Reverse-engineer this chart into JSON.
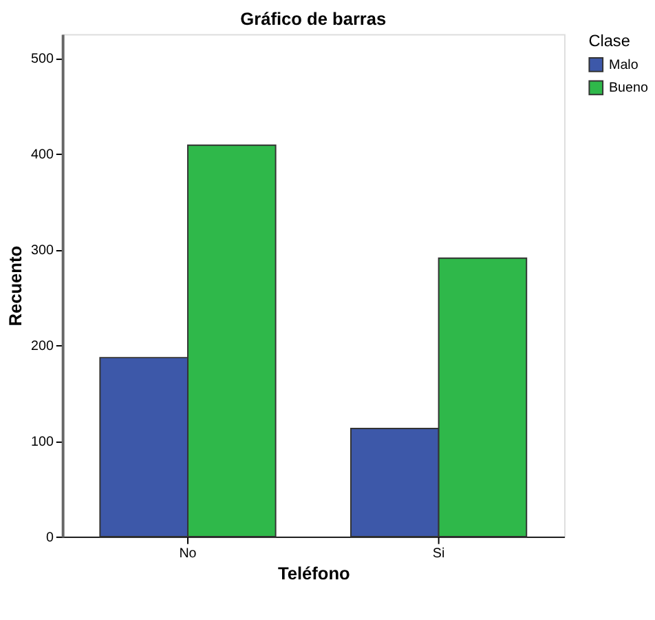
{
  "chart_data": {
    "type": "bar",
    "title": "Gráfico de barras",
    "xlabel": "Teléfono",
    "ylabel": "Recuento",
    "legend_title": "Clase",
    "categories": [
      "No",
      "Si"
    ],
    "series": [
      {
        "name": "Malo",
        "color": "#3d58a9",
        "values": [
          187,
          113
        ]
      },
      {
        "name": "Bueno",
        "color": "#2fb84a",
        "values": [
          409,
          291
        ]
      }
    ],
    "ylim": [
      0,
      525
    ],
    "yticks": [
      0,
      100,
      200,
      300,
      400,
      500
    ],
    "grid": false,
    "legend": "top right"
  }
}
